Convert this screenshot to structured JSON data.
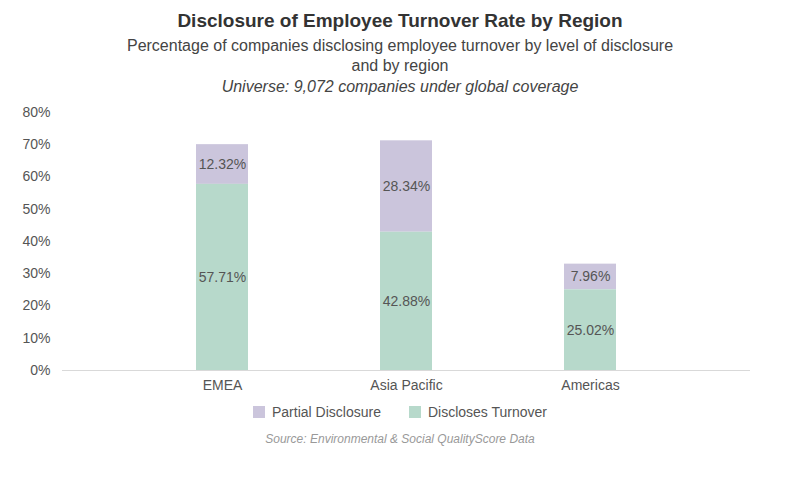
{
  "chart_data": {
    "type": "bar",
    "title": "Disclosure of Employee Turnover Rate by Region",
    "subtitle": "Percentage of companies disclosing employee turnover by level of disclosure and by region",
    "annotations": [
      "Universe: 9,072 companies under global coverage"
    ],
    "source": "Source: Environmental & Social QualityScore Data",
    "categories": [
      "EMEA",
      "Asia Pacific",
      "Americas"
    ],
    "series": [
      {
        "name": "Partial Disclosure",
        "color": "#cbc5dc",
        "values": [
          12.32,
          28.34,
          7.96
        ],
        "value_labels": [
          "12.32%",
          "28.34%",
          "7.96%"
        ]
      },
      {
        "name": "Discloses Turnover",
        "color": "#b7d9cb",
        "values": [
          57.71,
          42.88,
          25.02
        ],
        "value_labels": [
          "57.71%",
          "42.88%",
          "25.02%"
        ]
      }
    ],
    "stacked": true,
    "data_labels": true,
    "legend": "bottom",
    "grid": false,
    "ylim": [
      0,
      80
    ],
    "yticks": [
      {
        "value": 0,
        "label": "0%"
      },
      {
        "value": 10,
        "label": "10%"
      },
      {
        "value": 20,
        "label": "20%"
      },
      {
        "value": 30,
        "label": "30%"
      },
      {
        "value": 40,
        "label": "40%"
      },
      {
        "value": 50,
        "label": "50%"
      },
      {
        "value": 60,
        "label": "60%"
      },
      {
        "value": 70,
        "label": "70%"
      },
      {
        "value": 80,
        "label": "80%"
      }
    ]
  }
}
